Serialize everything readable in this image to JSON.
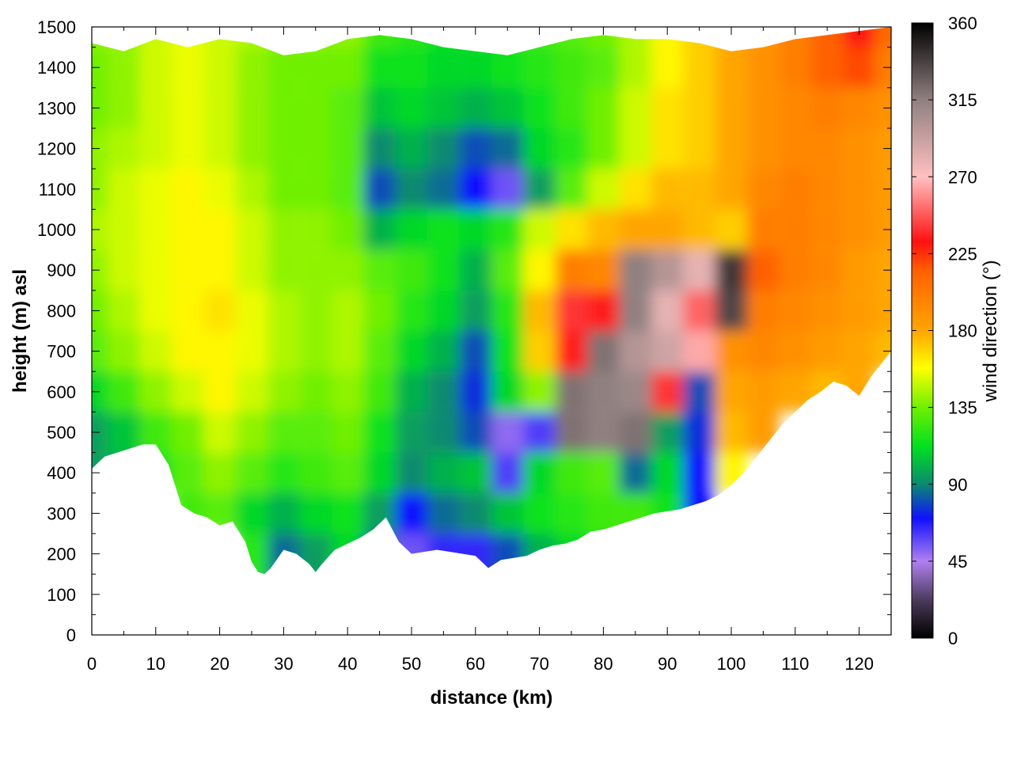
{
  "chart_data": {
    "type": "heatmap",
    "title": "",
    "xlabel": "distance (km)",
    "ylabel": "height (m) asl",
    "colorbar_label": "wind direction (°)",
    "xlim": [
      0,
      125
    ],
    "ylim": [
      0,
      1500
    ],
    "x_ticks": [
      0,
      10,
      20,
      30,
      40,
      50,
      60,
      70,
      80,
      90,
      100,
      110,
      120
    ],
    "y_ticks": [
      0,
      100,
      200,
      300,
      400,
      500,
      600,
      700,
      800,
      900,
      1000,
      1100,
      1200,
      1300,
      1400,
      1500
    ],
    "colorbar_range": [
      0,
      360
    ],
    "colorbar_ticks": [
      0,
      45,
      90,
      135,
      180,
      225,
      270,
      315,
      360
    ],
    "grid": true,
    "colormap": [
      {
        "value": 0,
        "color": "#000000"
      },
      {
        "value": 22,
        "color": "#4a3a5a"
      },
      {
        "value": 45,
        "color": "#b080f0"
      },
      {
        "value": 70,
        "color": "#1010ff"
      },
      {
        "value": 90,
        "color": "#0a8a70"
      },
      {
        "value": 112,
        "color": "#00e020"
      },
      {
        "value": 135,
        "color": "#70f000"
      },
      {
        "value": 158,
        "color": "#ffff00"
      },
      {
        "value": 180,
        "color": "#ffa500"
      },
      {
        "value": 215,
        "color": "#ff6000"
      },
      {
        "value": 232,
        "color": "#ff1010"
      },
      {
        "value": 270,
        "color": "#ffc0c0"
      },
      {
        "value": 315,
        "color": "#908080"
      },
      {
        "value": 360,
        "color": "#000000"
      }
    ],
    "terrain_height_m": {
      "x_km": [
        0,
        2,
        4,
        6,
        8,
        10,
        12,
        14,
        16,
        18,
        20,
        22,
        24,
        25,
        26,
        27,
        28,
        30,
        32,
        34,
        35,
        36,
        38,
        40,
        42,
        44,
        46,
        48,
        50,
        52,
        54,
        56,
        58,
        60,
        62,
        64,
        66,
        68,
        70,
        72,
        74,
        76,
        78,
        80,
        82,
        84,
        86,
        88,
        90,
        92,
        94,
        96,
        98,
        100,
        102,
        104,
        106,
        108,
        110,
        112,
        114,
        116,
        118,
        120,
        122,
        124,
        125
      ],
      "height_m": [
        410,
        440,
        450,
        460,
        470,
        470,
        420,
        320,
        300,
        290,
        270,
        280,
        230,
        180,
        155,
        150,
        165,
        210,
        200,
        175,
        155,
        175,
        210,
        225,
        240,
        260,
        290,
        230,
        200,
        205,
        210,
        205,
        200,
        195,
        165,
        185,
        190,
        195,
        210,
        220,
        225,
        235,
        255,
        260,
        270,
        280,
        290,
        300,
        305,
        310,
        320,
        330,
        345,
        370,
        400,
        440,
        480,
        520,
        550,
        580,
        600,
        625,
        615,
        590,
        640,
        680,
        700
      ]
    },
    "model_top_m": {
      "x_km": [
        0,
        5,
        10,
        15,
        20,
        25,
        30,
        35,
        40,
        45,
        50,
        55,
        60,
        65,
        70,
        75,
        80,
        85,
        90,
        95,
        100,
        105,
        110,
        115,
        120,
        125
      ],
      "height_m": [
        1460,
        1440,
        1470,
        1450,
        1470,
        1460,
        1430,
        1440,
        1470,
        1480,
        1470,
        1450,
        1440,
        1430,
        1450,
        1470,
        1480,
        1470,
        1470,
        1460,
        1440,
        1450,
        1470,
        1480,
        1490,
        1500
      ]
    },
    "wind_direction_field": {
      "x_km": [
        0,
        5,
        10,
        15,
        20,
        25,
        30,
        35,
        40,
        45,
        50,
        55,
        60,
        65,
        70,
        75,
        80,
        85,
        90,
        95,
        100,
        105,
        110,
        115,
        120,
        125
      ],
      "height_m": [
        200,
        300,
        400,
        500,
        600,
        700,
        800,
        900,
        1000,
        1100,
        1200,
        1300,
        1400,
        1500
      ],
      "values_deg": [
        [
          null,
          null,
          null,
          null,
          null,
          120,
          85,
          95,
          110,
          85,
          55,
          65,
          65,
          80,
          100,
          110,
          115,
          110,
          100,
          null,
          null,
          null,
          null,
          null,
          null,
          null
        ],
        [
          null,
          null,
          null,
          125,
          130,
          110,
          100,
          110,
          115,
          95,
          70,
          85,
          90,
          105,
          115,
          120,
          125,
          125,
          115,
          70,
          null,
          null,
          null,
          null,
          null,
          null
        ],
        [
          95,
          100,
          115,
          130,
          140,
          130,
          120,
          125,
          130,
          110,
          90,
          100,
          105,
          60,
          110,
          125,
          130,
          85,
          110,
          70,
          160,
          null,
          null,
          null,
          null,
          null
        ],
        [
          95,
          105,
          125,
          135,
          150,
          140,
          130,
          130,
          135,
          115,
          95,
          90,
          80,
          50,
          60,
          320,
          315,
          320,
          95,
          75,
          175,
          185,
          null,
          null,
          null,
          null
        ],
        [
          110,
          125,
          140,
          150,
          160,
          150,
          140,
          135,
          140,
          125,
          100,
          90,
          75,
          110,
          140,
          320,
          315,
          310,
          240,
          80,
          180,
          185,
          180,
          175,
          180,
          null
        ],
        [
          130,
          140,
          150,
          160,
          160,
          155,
          145,
          140,
          145,
          130,
          110,
          100,
          80,
          115,
          170,
          235,
          320,
          300,
          290,
          265,
          190,
          195,
          190,
          185,
          180,
          175
        ],
        [
          135,
          145,
          155,
          160,
          165,
          155,
          145,
          140,
          145,
          135,
          120,
          110,
          95,
          120,
          175,
          240,
          235,
          315,
          280,
          250,
          335,
          200,
          195,
          190,
          185,
          180
        ],
        [
          140,
          150,
          155,
          160,
          160,
          150,
          140,
          140,
          140,
          130,
          125,
          115,
          100,
          130,
          160,
          200,
          195,
          315,
          300,
          280,
          340,
          215,
          200,
          195,
          185,
          180
        ],
        [
          145,
          150,
          155,
          160,
          160,
          150,
          140,
          140,
          135,
          100,
          110,
          115,
          110,
          120,
          150,
          165,
          175,
          180,
          180,
          175,
          170,
          200,
          200,
          195,
          190,
          185
        ],
        [
          140,
          150,
          155,
          160,
          155,
          145,
          135,
          135,
          130,
          80,
          90,
          85,
          70,
          55,
          95,
          130,
          150,
          165,
          175,
          175,
          180,
          195,
          200,
          195,
          190,
          185
        ],
        [
          140,
          145,
          150,
          155,
          150,
          140,
          135,
          135,
          130,
          90,
          100,
          90,
          80,
          85,
          110,
          120,
          135,
          150,
          165,
          170,
          180,
          190,
          195,
          195,
          190,
          185
        ],
        [
          135,
          140,
          150,
          155,
          150,
          140,
          135,
          135,
          130,
          105,
          110,
          105,
          100,
          105,
          115,
          125,
          135,
          150,
          165,
          170,
          180,
          190,
          195,
          200,
          195,
          190
        ],
        [
          135,
          140,
          150,
          155,
          150,
          140,
          135,
          135,
          135,
          115,
          115,
          110,
          110,
          115,
          120,
          125,
          130,
          145,
          160,
          170,
          180,
          190,
          200,
          215,
          220,
          200
        ],
        [
          140,
          140,
          150,
          155,
          150,
          145,
          140,
          140,
          140,
          125,
          120,
          115,
          115,
          120,
          125,
          130,
          135,
          145,
          160,
          170,
          180,
          190,
          200,
          215,
          230,
          210
        ]
      ]
    }
  }
}
